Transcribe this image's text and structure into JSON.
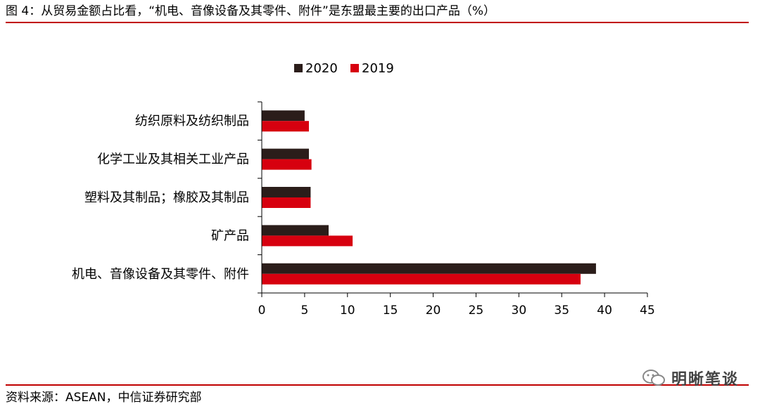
{
  "figure": {
    "title": "图 4：从贸易金额占比看，“机电、音像设备及其零件、附件”是东盟最主要的出口产品（%）",
    "source": "资料来源：ASEAN，中信证券研究部",
    "watermark": "明晰笔谈"
  },
  "colors": {
    "accent": "#c00000",
    "series_2020": "#2b1d1a",
    "series_2019": "#d7000f",
    "axis": "#000000"
  },
  "chart_data": {
    "type": "bar",
    "orientation": "horizontal",
    "categories": [
      "纺织原料及纺织制品",
      "化学工业及其相关工业产品",
      "塑料及其制品；橡胶及其制品",
      "矿产品",
      "机电、音像设备及其零件、附件"
    ],
    "series": [
      {
        "name": "2020",
        "values": [
          5.0,
          5.5,
          5.7,
          7.8,
          39.0
        ],
        "color": "#2b1d1a"
      },
      {
        "name": "2019",
        "values": [
          5.5,
          5.8,
          5.7,
          10.6,
          37.2
        ],
        "color": "#d7000f"
      }
    ],
    "xticks": [
      "0",
      "5",
      "10",
      "15",
      "20",
      "25",
      "30",
      "35",
      "40",
      "45"
    ],
    "xlim": [
      0,
      45
    ],
    "grid": false,
    "legend_position": "top-center",
    "title": "",
    "xlabel": "",
    "ylabel": ""
  }
}
